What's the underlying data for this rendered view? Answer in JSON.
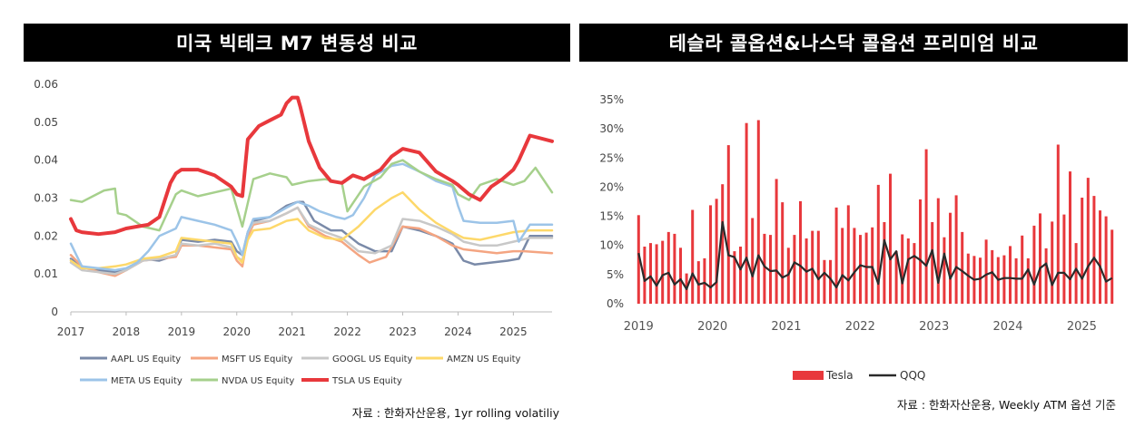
{
  "left": {
    "title": "미국 빅테크 M7 변동성 비교",
    "source": "자료 : 한화자산운용, 1yr rolling volatiliy",
    "chart_data": {
      "type": "line",
      "title": "미국 빅테크 M7 변동성 비교",
      "xlabel": "",
      "ylabel": "",
      "xlim": [
        2017,
        2025.7
      ],
      "ylim": [
        0,
        0.06
      ],
      "y_ticks": [
        "0",
        "0.01",
        "0.02",
        "0.03",
        "0.04",
        "0.05",
        "0.06"
      ],
      "x_ticks": [
        "2017",
        "2018",
        "2019",
        "2020",
        "2021",
        "2022",
        "2023",
        "2024",
        "2025"
      ],
      "legend_position": "bottom",
      "series": [
        {
          "name": "AAPL US Equity",
          "color": "#7a8aa8",
          "width": 2.5,
          "x": [
            2017.0,
            2017.2,
            2017.5,
            2017.8,
            2018.0,
            2018.3,
            2018.6,
            2018.9,
            2019.0,
            2019.3,
            2019.6,
            2019.9,
            2020.0,
            2020.1,
            2020.2,
            2020.3,
            2020.6,
            2020.9,
            2021.1,
            2021.2,
            2021.4,
            2021.7,
            2021.9,
            2022.2,
            2022.5,
            2022.8,
            2023.0,
            2023.3,
            2023.6,
            2023.9,
            2024.1,
            2024.3,
            2024.6,
            2024.9,
            2025.1,
            2025.3,
            2025.7
          ],
          "y": [
            0.014,
            0.012,
            0.011,
            0.0105,
            0.011,
            0.014,
            0.0135,
            0.015,
            0.019,
            0.0185,
            0.019,
            0.0185,
            0.016,
            0.015,
            0.021,
            0.024,
            0.025,
            0.028,
            0.029,
            0.029,
            0.024,
            0.0215,
            0.0215,
            0.018,
            0.016,
            0.016,
            0.0225,
            0.0215,
            0.02,
            0.018,
            0.0135,
            0.0125,
            0.013,
            0.0135,
            0.014,
            0.02,
            0.02
          ]
        },
        {
          "name": "MSFT US Equity",
          "color": "#f4a582",
          "width": 2.5,
          "x": [
            2017.0,
            2017.2,
            2017.5,
            2017.8,
            2018.0,
            2018.3,
            2018.6,
            2018.9,
            2019.0,
            2019.3,
            2019.6,
            2019.9,
            2020.0,
            2020.1,
            2020.2,
            2020.3,
            2020.6,
            2020.9,
            2021.1,
            2021.3,
            2021.6,
            2021.9,
            2022.2,
            2022.4,
            2022.7,
            2023.0,
            2023.3,
            2023.6,
            2023.9,
            2024.1,
            2024.4,
            2024.7,
            2025.0,
            2025.2,
            2025.7
          ],
          "y": [
            0.015,
            0.012,
            0.0105,
            0.0095,
            0.011,
            0.0135,
            0.014,
            0.0145,
            0.0175,
            0.0175,
            0.017,
            0.0165,
            0.0135,
            0.012,
            0.02,
            0.023,
            0.024,
            0.026,
            0.0275,
            0.0225,
            0.02,
            0.0185,
            0.015,
            0.013,
            0.0145,
            0.0225,
            0.022,
            0.02,
            0.0175,
            0.0165,
            0.016,
            0.0155,
            0.016,
            0.016,
            0.0155
          ]
        },
        {
          "name": "GOOGL US Equity",
          "color": "#c8c8c8",
          "width": 2.5,
          "x": [
            2017.0,
            2017.2,
            2017.5,
            2017.8,
            2018.0,
            2018.3,
            2018.6,
            2018.9,
            2019.0,
            2019.3,
            2019.6,
            2019.9,
            2020.0,
            2020.1,
            2020.2,
            2020.3,
            2020.6,
            2020.9,
            2021.1,
            2021.3,
            2021.6,
            2021.9,
            2022.2,
            2022.5,
            2022.8,
            2023.0,
            2023.3,
            2023.6,
            2023.9,
            2024.1,
            2024.4,
            2024.7,
            2025.0,
            2025.3,
            2025.7
          ],
          "y": [
            0.013,
            0.011,
            0.0105,
            0.01,
            0.011,
            0.0135,
            0.014,
            0.015,
            0.018,
            0.0175,
            0.018,
            0.017,
            0.0145,
            0.0135,
            0.021,
            0.0235,
            0.024,
            0.026,
            0.0275,
            0.023,
            0.021,
            0.0195,
            0.016,
            0.0155,
            0.0175,
            0.0245,
            0.024,
            0.0225,
            0.0205,
            0.0185,
            0.0175,
            0.0175,
            0.0185,
            0.0195,
            0.0195
          ]
        },
        {
          "name": "AMZN US Equity",
          "color": "#fdd86a",
          "width": 2.5,
          "x": [
            2017.0,
            2017.2,
            2017.5,
            2017.8,
            2018.0,
            2018.3,
            2018.6,
            2018.9,
            2019.0,
            2019.3,
            2019.6,
            2019.9,
            2020.0,
            2020.1,
            2020.2,
            2020.3,
            2020.6,
            2020.9,
            2021.1,
            2021.3,
            2021.6,
            2021.9,
            2022.2,
            2022.5,
            2022.8,
            2023.0,
            2023.3,
            2023.6,
            2023.9,
            2024.1,
            2024.4,
            2024.7,
            2025.0,
            2025.3,
            2025.7
          ],
          "y": [
            0.0135,
            0.0115,
            0.0115,
            0.012,
            0.0125,
            0.014,
            0.0145,
            0.016,
            0.0195,
            0.019,
            0.0185,
            0.018,
            0.0145,
            0.013,
            0.019,
            0.0215,
            0.022,
            0.024,
            0.0245,
            0.0215,
            0.0195,
            0.019,
            0.0225,
            0.027,
            0.03,
            0.0315,
            0.027,
            0.0235,
            0.021,
            0.0195,
            0.019,
            0.02,
            0.021,
            0.0215,
            0.0215
          ]
        },
        {
          "name": "META US Equity",
          "color": "#9cc4e8",
          "width": 2.5,
          "x": [
            2017.0,
            2017.2,
            2017.5,
            2017.8,
            2018.0,
            2018.2,
            2018.4,
            2018.6,
            2018.9,
            2019.0,
            2019.3,
            2019.6,
            2019.9,
            2020.0,
            2020.1,
            2020.2,
            2020.3,
            2020.6,
            2020.9,
            2021.1,
            2021.3,
            2021.5,
            2021.8,
            2021.95,
            2022.1,
            2022.3,
            2022.5,
            2022.8,
            2023.0,
            2023.3,
            2023.6,
            2023.9,
            2024.0,
            2024.1,
            2024.4,
            2024.7,
            2025.0,
            2025.1,
            2025.3,
            2025.7
          ],
          "y": [
            0.018,
            0.012,
            0.0115,
            0.011,
            0.0115,
            0.013,
            0.016,
            0.02,
            0.022,
            0.025,
            0.024,
            0.023,
            0.0215,
            0.0185,
            0.015,
            0.021,
            0.0245,
            0.025,
            0.0275,
            0.029,
            0.028,
            0.0265,
            0.025,
            0.0245,
            0.0255,
            0.03,
            0.036,
            0.0385,
            0.039,
            0.037,
            0.0345,
            0.033,
            0.028,
            0.024,
            0.0235,
            0.0235,
            0.024,
            0.0185,
            0.023,
            0.023
          ]
        },
        {
          "name": "NVDA US Equity",
          "color": "#a6d08c",
          "width": 2.5,
          "x": [
            2017.0,
            2017.2,
            2017.4,
            2017.6,
            2017.8,
            2017.85,
            2018.0,
            2018.3,
            2018.6,
            2018.9,
            2019.0,
            2019.3,
            2019.6,
            2019.9,
            2020.0,
            2020.1,
            2020.3,
            2020.6,
            2020.9,
            2021.0,
            2021.3,
            2021.6,
            2021.9,
            2022.0,
            2022.3,
            2022.6,
            2022.8,
            2023.0,
            2023.3,
            2023.6,
            2023.9,
            2024.0,
            2024.2,
            2024.4,
            2024.7,
            2025.0,
            2025.2,
            2025.4,
            2025.7
          ],
          "y": [
            0.0295,
            0.029,
            0.0305,
            0.032,
            0.0325,
            0.026,
            0.0255,
            0.0225,
            0.0215,
            0.031,
            0.032,
            0.0305,
            0.0315,
            0.0325,
            0.0275,
            0.0225,
            0.035,
            0.0365,
            0.0355,
            0.0335,
            0.0345,
            0.035,
            0.034,
            0.0265,
            0.033,
            0.0355,
            0.039,
            0.04,
            0.037,
            0.035,
            0.0335,
            0.031,
            0.0295,
            0.0335,
            0.035,
            0.0335,
            0.0345,
            0.038,
            0.0315
          ]
        },
        {
          "name": "TSLA US Equity",
          "color": "#e8383c",
          "width": 4,
          "x": [
            2017.0,
            2017.1,
            2017.2,
            2017.5,
            2017.8,
            2018.0,
            2018.2,
            2018.4,
            2018.6,
            2018.8,
            2018.9,
            2019.0,
            2019.3,
            2019.6,
            2019.9,
            2020.0,
            2020.1,
            2020.2,
            2020.4,
            2020.6,
            2020.8,
            2020.9,
            2021.0,
            2021.1,
            2021.15,
            2021.3,
            2021.5,
            2021.7,
            2021.9,
            2022.1,
            2022.3,
            2022.6,
            2022.8,
            2023.0,
            2023.3,
            2023.6,
            2023.9,
            2024.0,
            2024.2,
            2024.4,
            2024.6,
            2024.8,
            2025.0,
            2025.1,
            2025.3,
            2025.7
          ],
          "y": [
            0.0245,
            0.0215,
            0.021,
            0.0205,
            0.021,
            0.022,
            0.0225,
            0.023,
            0.025,
            0.034,
            0.0365,
            0.0375,
            0.0375,
            0.036,
            0.033,
            0.031,
            0.0305,
            0.0455,
            0.049,
            0.0505,
            0.052,
            0.055,
            0.0565,
            0.0565,
            0.054,
            0.045,
            0.038,
            0.0345,
            0.034,
            0.036,
            0.035,
            0.0375,
            0.041,
            0.043,
            0.042,
            0.037,
            0.0345,
            0.0335,
            0.031,
            0.0295,
            0.033,
            0.035,
            0.0375,
            0.04,
            0.0465,
            0.045
          ]
        }
      ]
    }
  },
  "right": {
    "title": "테슬라 콜옵션&나스닥 콜옵션 프리미엄 비교",
    "source": "자료 : 한화자산운용, Weekly ATM 옵션 기준",
    "chart_data": {
      "type": "bar",
      "title": "테슬라 콜옵션&나스닥 콜옵션 프리미엄 비교",
      "xlabel": "",
      "ylabel": "",
      "ylim": [
        0,
        35
      ],
      "y_ticks": [
        "0%",
        "5%",
        "10%",
        "15%",
        "20%",
        "25%",
        "30%",
        "35%"
      ],
      "x_ticks": [
        "2019",
        "2020",
        "2021",
        "2022",
        "2023",
        "2024",
        "2025"
      ],
      "x_range": [
        2018.96,
        2025.45
      ],
      "legend_position": "bottom",
      "series": [
        {
          "name": "Tesla",
          "type": "bar",
          "color": "#e8383c",
          "values": [
            15.2,
            9.8,
            10.4,
            10.2,
            10.8,
            12.3,
            12.0,
            9.6,
            5.2,
            16.1,
            7.3,
            7.8,
            16.9,
            18.0,
            20.5,
            27.2,
            9.0,
            9.8,
            31.0,
            14.7,
            31.5,
            12.0,
            11.8,
            21.4,
            17.4,
            9.6,
            11.8,
            17.6,
            11.2,
            12.5,
            12.5,
            7.5,
            7.5,
            16.5,
            13.0,
            16.9,
            13.0,
            11.8,
            12.2,
            13.1,
            20.4,
            14.0,
            22.3,
            9.0,
            11.9,
            11.2,
            10.4,
            17.9,
            26.5,
            14.0,
            18.1,
            11.4,
            15.6,
            18.6,
            12.3,
            8.6,
            8.2,
            7.9,
            11.0,
            9.2,
            8.0,
            8.3,
            9.9,
            7.8,
            11.7,
            7.8,
            13.4,
            15.5,
            9.5,
            14.1,
            27.3,
            15.3,
            22.7,
            10.4,
            18.2,
            21.6,
            18.5,
            16.0,
            15.0,
            12.7
          ]
        },
        {
          "name": "QQQ",
          "type": "line",
          "color": "#2a2a2a",
          "values": [
            8.7,
            3.9,
            4.7,
            3.1,
            4.9,
            5.3,
            3.3,
            4.2,
            2.5,
            5.2,
            3.3,
            3.6,
            2.8,
            3.7,
            14.0,
            8.3,
            8.0,
            5.9,
            7.9,
            4.7,
            8.3,
            6.4,
            5.6,
            5.7,
            4.5,
            5.0,
            7.1,
            6.5,
            5.5,
            6.0,
            4.2,
            5.3,
            4.3,
            2.8,
            4.9,
            4.0,
            5.4,
            6.6,
            6.3,
            6.3,
            3.4,
            10.9,
            7.6,
            9.0,
            3.5,
            7.6,
            8.2,
            7.5,
            6.5,
            9.2,
            3.6,
            8.6,
            4.3,
            6.3,
            5.6,
            4.8,
            4.1,
            4.3,
            5.0,
            5.4,
            4.1,
            4.4,
            4.4,
            4.3,
            4.3,
            5.9,
            3.3,
            6.1,
            6.9,
            3.2,
            5.3,
            5.3,
            4.2,
            6.0,
            4.3,
            6.4,
            7.9,
            6.4,
            3.8,
            4.4
          ]
        }
      ]
    }
  }
}
